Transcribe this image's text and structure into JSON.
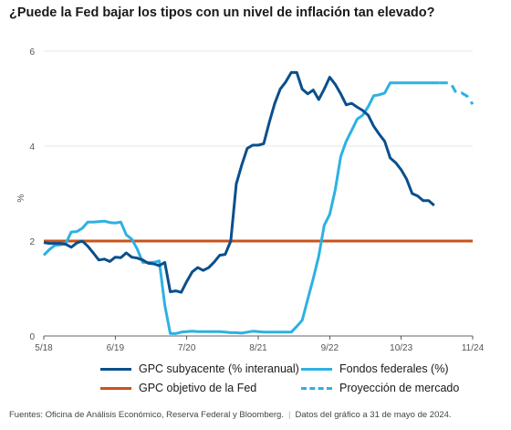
{
  "title": "¿Puede la Fed bajar los tipos con un nivel de inflación tan elevado?",
  "source": {
    "text": "Fuentes: Oficina de Análisis Económico, Reserva Federal y Bloomberg.",
    "date_note": "Datos del gráfico a 31 de mayo de 2024."
  },
  "chart_data": {
    "type": "line",
    "ylabel": "%",
    "ylim": [
      0,
      6
    ],
    "yticks": [
      0,
      2,
      4,
      6
    ],
    "xlim": [
      "2018-05",
      "2024-11"
    ],
    "xticks": [
      {
        "x": "2018-05",
        "label": "5/18"
      },
      {
        "x": "2019-06",
        "label": "6/19"
      },
      {
        "x": "2020-07",
        "label": "7/20"
      },
      {
        "x": "2021-08",
        "label": "8/21"
      },
      {
        "x": "2022-09",
        "label": "9/22"
      },
      {
        "x": "2023-10",
        "label": "10/23"
      },
      {
        "x": "2024-11",
        "label": "11/24"
      }
    ],
    "grid": true,
    "legend_position": "bottom",
    "series": [
      {
        "name": "GPC subyacente (% interanual)",
        "color": "#0a4f8c",
        "style": "solid",
        "x": [
          "2018-05",
          "2018-06",
          "2018-07",
          "2018-08",
          "2018-09",
          "2018-10",
          "2018-11",
          "2018-12",
          "2019-01",
          "2019-02",
          "2019-03",
          "2019-04",
          "2019-05",
          "2019-06",
          "2019-07",
          "2019-08",
          "2019-09",
          "2019-10",
          "2019-11",
          "2019-12",
          "2020-01",
          "2020-02",
          "2020-03",
          "2020-04",
          "2020-05",
          "2020-06",
          "2020-07",
          "2020-08",
          "2020-09",
          "2020-10",
          "2020-11",
          "2020-12",
          "2021-01",
          "2021-02",
          "2021-03",
          "2021-04",
          "2021-05",
          "2021-06",
          "2021-07",
          "2021-08",
          "2021-09",
          "2021-10",
          "2021-11",
          "2021-12",
          "2022-01",
          "2022-02",
          "2022-03",
          "2022-04",
          "2022-05",
          "2022-06",
          "2022-07",
          "2022-08",
          "2022-09",
          "2022-10",
          "2022-11",
          "2022-12",
          "2023-01",
          "2023-02",
          "2023-03",
          "2023-04",
          "2023-05",
          "2023-06",
          "2023-07",
          "2023-08",
          "2023-09",
          "2023-10",
          "2023-11",
          "2023-12",
          "2024-01",
          "2024-02",
          "2024-03",
          "2024-04"
        ],
        "values": [
          1.97,
          1.95,
          1.95,
          1.95,
          1.93,
          1.87,
          1.96,
          2.0,
          1.89,
          1.75,
          1.6,
          1.62,
          1.57,
          1.66,
          1.65,
          1.75,
          1.66,
          1.64,
          1.6,
          1.53,
          1.52,
          1.48,
          1.55,
          0.93,
          0.95,
          0.92,
          1.15,
          1.35,
          1.44,
          1.38,
          1.44,
          1.56,
          1.7,
          1.72,
          2.0,
          3.2,
          3.6,
          3.95,
          4.02,
          4.02,
          4.05,
          4.5,
          4.9,
          5.2,
          5.35,
          5.55,
          5.55,
          5.2,
          5.1,
          5.18,
          4.98,
          5.2,
          5.45,
          5.3,
          5.1,
          4.87,
          4.9,
          4.82,
          4.75,
          4.65,
          4.42,
          4.25,
          4.1,
          3.75,
          3.65,
          3.5,
          3.3,
          3.0,
          2.95,
          2.85,
          2.85,
          2.75
        ]
      },
      {
        "name": "Fondos federales (%)",
        "color": "#2db1e3",
        "style": "solid",
        "x": [
          "2018-05",
          "2018-06",
          "2018-07",
          "2018-08",
          "2018-09",
          "2018-10",
          "2018-11",
          "2018-12",
          "2019-01",
          "2019-02",
          "2019-03",
          "2019-04",
          "2019-05",
          "2019-06",
          "2019-07",
          "2019-08",
          "2019-09",
          "2019-10",
          "2019-11",
          "2019-12",
          "2020-01",
          "2020-02",
          "2020-03",
          "2020-04",
          "2020-05",
          "2020-06",
          "2020-07",
          "2020-08",
          "2020-09",
          "2020-10",
          "2020-11",
          "2020-12",
          "2021-01",
          "2021-02",
          "2021-03",
          "2021-04",
          "2021-05",
          "2021-06",
          "2021-07",
          "2021-08",
          "2021-09",
          "2021-10",
          "2021-11",
          "2021-12",
          "2022-01",
          "2022-02",
          "2022-03",
          "2022-04",
          "2022-05",
          "2022-06",
          "2022-07",
          "2022-08",
          "2022-09",
          "2022-10",
          "2022-11",
          "2022-12",
          "2023-01",
          "2023-02",
          "2023-03",
          "2023-04",
          "2023-05",
          "2023-06",
          "2023-07",
          "2023-08",
          "2023-09",
          "2023-10",
          "2023-11",
          "2023-12",
          "2024-01",
          "2024-02",
          "2024-03",
          "2024-04",
          "2024-05"
        ],
        "values": [
          1.7,
          1.82,
          1.91,
          1.92,
          1.95,
          2.19,
          2.2,
          2.27,
          2.4,
          2.4,
          2.41,
          2.42,
          2.39,
          2.38,
          2.4,
          2.13,
          2.04,
          1.83,
          1.55,
          1.55,
          1.55,
          1.58,
          0.65,
          0.05,
          0.05,
          0.08,
          0.09,
          0.1,
          0.09,
          0.09,
          0.09,
          0.09,
          0.09,
          0.08,
          0.07,
          0.07,
          0.06,
          0.08,
          0.1,
          0.09,
          0.08,
          0.08,
          0.08,
          0.08,
          0.08,
          0.08,
          0.2,
          0.33,
          0.77,
          1.21,
          1.68,
          2.33,
          2.56,
          3.08,
          3.78,
          4.1,
          4.33,
          4.57,
          4.65,
          4.83,
          5.06,
          5.08,
          5.12,
          5.33,
          5.33,
          5.33,
          5.33,
          5.33,
          5.33,
          5.33,
          5.33,
          5.33,
          5.33
        ]
      },
      {
        "name": "GPC objetivo de la Fed",
        "color": "#c8531c",
        "style": "solid",
        "x": [
          "2018-05",
          "2024-11"
        ],
        "values": [
          2,
          2
        ]
      },
      {
        "name": "Proyección de mercado",
        "color": "#2db1e3",
        "style": "dashed",
        "x": [
          "2024-05",
          "2024-06",
          "2024-07",
          "2024-08",
          "2024-09",
          "2024-10",
          "2024-11"
        ],
        "values": [
          5.33,
          5.33,
          5.33,
          5.12,
          5.12,
          5.05,
          4.88
        ]
      }
    ]
  }
}
